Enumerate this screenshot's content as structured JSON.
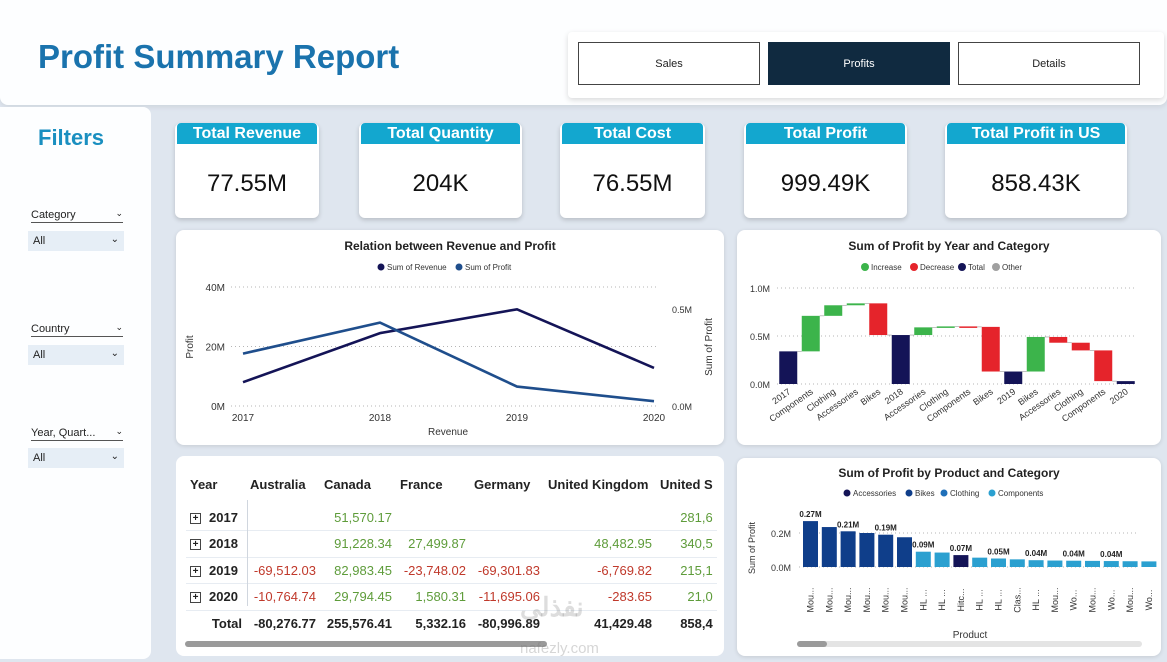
{
  "header": {
    "title": "Profit Summary Report",
    "nav": [
      {
        "label": "Sales",
        "active": false
      },
      {
        "label": "Profits",
        "active": true
      },
      {
        "label": "Details",
        "active": false
      }
    ]
  },
  "sidebar": {
    "title": "Filters",
    "filters": [
      {
        "label": "Category",
        "value": "All"
      },
      {
        "label": "Country",
        "value": "All"
      },
      {
        "label": "Year, Quart...",
        "value": "All"
      }
    ]
  },
  "kpis": [
    {
      "label": "Total Revenue",
      "value": "77.55M"
    },
    {
      "label": "Total Quantity",
      "value": "204K"
    },
    {
      "label": "Total Cost",
      "value": "76.55M"
    },
    {
      "label": "Total Profit",
      "value": "999.49K"
    },
    {
      "label": "Total Profit in US",
      "value": "858.43K"
    }
  ],
  "colors": {
    "accent": "#1a73ad",
    "kpi_header": "#13a7cf",
    "nav_active": "#102a40",
    "increase": "#3cb44b",
    "decrease": "#e5242b",
    "total": "#141457",
    "other": "#a0a0a0"
  },
  "chart_data": [
    {
      "type": "line",
      "title": "Relation between Revenue and Profit",
      "xlabel": "Revenue",
      "ylabel": "Profit",
      "y2label": "Sum of Profit",
      "x": [
        "2017",
        "2018",
        "2019",
        "2020"
      ],
      "ylim": [
        0,
        40000000
      ],
      "y_ticks": [
        "0M",
        "20M",
        "40M"
      ],
      "y2lim": [
        0,
        500000
      ],
      "y2_ticks": [
        "0.0M",
        "0.5M"
      ],
      "grid": true,
      "legend": "top-center",
      "series": [
        {
          "name": "Sum of Revenue",
          "axis": "left",
          "color": "#141457",
          "values": [
            8000000,
            24500000,
            32500000,
            12800000
          ]
        },
        {
          "name": "Sum of Profit",
          "axis": "right",
          "color": "#1f4e8c",
          "values": [
            270000,
            430000,
            100000,
            25000
          ]
        }
      ]
    },
    {
      "type": "bar",
      "subtype": "waterfall",
      "title": "Sum of Profit by Year and Category",
      "legend_entries": [
        "Increase",
        "Decrease",
        "Total",
        "Other"
      ],
      "legend": "top-center",
      "ylim": [
        0,
        1000000
      ],
      "y_ticks": [
        "0.0M",
        "0.5M",
        "1.0M"
      ],
      "grid": true,
      "categories": [
        "2017",
        "Components",
        "Clothing",
        "Accessories",
        "Bikes",
        "2018",
        "Accessories",
        "Clothing",
        "Components",
        "Bikes",
        "2019",
        "Bikes",
        "Accessories",
        "Clothing",
        "Components",
        "2020"
      ],
      "bars": [
        {
          "start": 0,
          "end": 340000,
          "kind": "total"
        },
        {
          "start": 340000,
          "end": 710000,
          "kind": "increase"
        },
        {
          "start": 710000,
          "end": 820000,
          "kind": "increase"
        },
        {
          "start": 820000,
          "end": 840000,
          "kind": "increase"
        },
        {
          "start": 840000,
          "end": 510000,
          "kind": "decrease"
        },
        {
          "start": 0,
          "end": 510000,
          "kind": "total"
        },
        {
          "start": 510000,
          "end": 590000,
          "kind": "increase"
        },
        {
          "start": 590000,
          "end": 600000,
          "kind": "increase"
        },
        {
          "start": 600000,
          "end": 595000,
          "kind": "decrease"
        },
        {
          "start": 595000,
          "end": 130000,
          "kind": "decrease"
        },
        {
          "start": 0,
          "end": 130000,
          "kind": "total"
        },
        {
          "start": 130000,
          "end": 490000,
          "kind": "increase"
        },
        {
          "start": 490000,
          "end": 430000,
          "kind": "decrease"
        },
        {
          "start": 430000,
          "end": 350000,
          "kind": "decrease"
        },
        {
          "start": 350000,
          "end": 30000,
          "kind": "decrease"
        },
        {
          "start": 0,
          "end": 30000,
          "kind": "total"
        }
      ]
    },
    {
      "type": "bar",
      "title": "Sum of Profit by Product and Category",
      "xlabel": "Product",
      "ylabel": "Sum of Profit",
      "ylim": [
        0,
        300000
      ],
      "y_ticks": [
        "0.0M",
        "0.2M"
      ],
      "legend_entries": [
        "Accessories",
        "Bikes",
        "Clothing",
        "Components"
      ],
      "legend": "top-center",
      "categories": [
        "Mou...",
        "Mou...",
        "Mou...",
        "Mou...",
        "Mou...",
        "Mou...",
        "HL ...",
        "HL ...",
        "Hitc...",
        "HL ...",
        "HL ...",
        "Clas...",
        "HL ...",
        "Mou...",
        "Wo...",
        "Mou...",
        "Wo...",
        "Mou...",
        "Wo..."
      ],
      "values": [
        270000,
        235000,
        210000,
        200000,
        190000,
        175000,
        90000,
        85000,
        70000,
        55000,
        50000,
        45000,
        40000,
        38000,
        37000,
        36000,
        35000,
        34000,
        33000
      ],
      "groups": [
        "Bikes",
        "Bikes",
        "Bikes",
        "Bikes",
        "Bikes",
        "Bikes",
        "Components",
        "Components",
        "Accessories",
        "Components",
        "Components",
        "Components",
        "Components",
        "Components",
        "Components",
        "Components",
        "Components",
        "Components",
        "Components"
      ],
      "data_labels": [
        "0.27M",
        "",
        "0.21M",
        "",
        "0.19M",
        "",
        "0.09M",
        "",
        "0.07M",
        "",
        "0.05M",
        "",
        "0.04M",
        "",
        "0.04M",
        "",
        "0.04M",
        "",
        ""
      ]
    }
  ],
  "table": {
    "columns": [
      "Year",
      "Australia",
      "Canada",
      "France",
      "Germany",
      "United Kingdom",
      "United S"
    ],
    "rows": [
      {
        "year": "2017",
        "cells": [
          "",
          "51,570.17",
          "",
          "",
          "",
          "281,6"
        ]
      },
      {
        "year": "2018",
        "cells": [
          "",
          "91,228.34",
          "27,499.87",
          "",
          "48,482.95",
          "340,5"
        ]
      },
      {
        "year": "2019",
        "cells": [
          "-69,512.03",
          "82,983.45",
          "-23,748.02",
          "-69,301.83",
          "-6,769.82",
          "215,1"
        ]
      },
      {
        "year": "2020",
        "cells": [
          "-10,764.74",
          "29,794.45",
          "1,580.31",
          "-11,695.06",
          "-283.65",
          "21,0"
        ]
      }
    ],
    "total": {
      "label": "Total",
      "cells": [
        "-80,276.77",
        "255,576.41",
        "5,332.16",
        "-80,996.89",
        "41,429.48",
        "858,4"
      ]
    }
  },
  "watermark": {
    "main": "نفذلي",
    "sub": "nafezly.com"
  }
}
